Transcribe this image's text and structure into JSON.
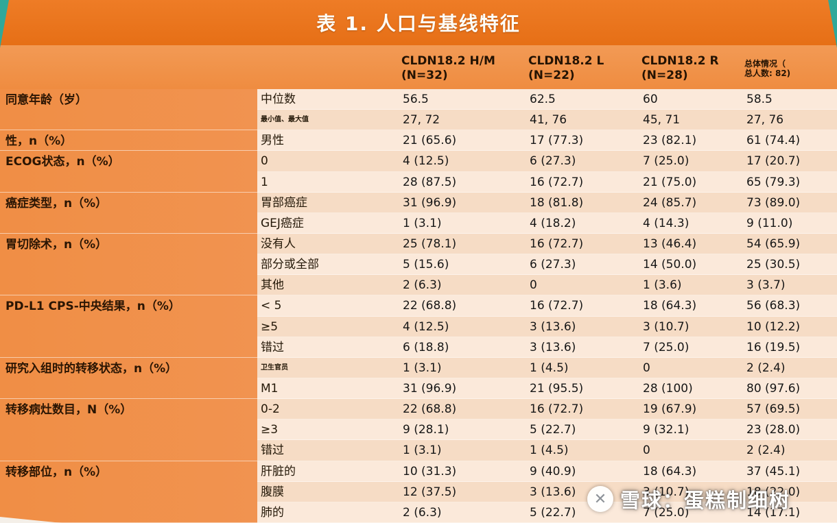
{
  "page": {
    "title": "表 1. 人口与基线特征",
    "watermark_text": "雪球：蛋糕制细树",
    "watermark_logo_glyph": "✕"
  },
  "colors": {
    "title_bar": "#e9741f",
    "header_band": "#f0924b",
    "left_column": "#f08e45",
    "row_light": "#fbe9da",
    "row_dark": "#f6dcc5",
    "page_background": "#2fa89a"
  },
  "table": {
    "header": {
      "cols": [
        {
          "line1": "CLDN18.2 H/M",
          "line2": "(N=32)"
        },
        {
          "line1": "CLDN18.2 L",
          "line2": "(N=22)"
        },
        {
          "line1": "CLDN18.2 R",
          "line2": "(N=28)"
        },
        {
          "line1": "总体情况（",
          "line2": "总人数: 82)"
        }
      ]
    },
    "groups": [
      {
        "label": "同意年龄（岁）",
        "rows": [
          {
            "sub": "中位数",
            "values": [
              "56.5",
              "62.5",
              "60",
              "58.5"
            ]
          },
          {
            "sub": "最小值、最大值",
            "small": true,
            "values": [
              "27, 72",
              "41, 76",
              "45, 71",
              "27, 76"
            ]
          }
        ]
      },
      {
        "label": "性，n（%）",
        "rows": [
          {
            "sub": "男性",
            "values": [
              "21 (65.6)",
              "17 (77.3)",
              "23 (82.1)",
              "61 (74.4)"
            ]
          }
        ]
      },
      {
        "label": "ECOG状态，n（%）",
        "rows": [
          {
            "sub": "0",
            "values": [
              "4 (12.5)",
              "6 (27.3)",
              "7 (25.0)",
              "17 (20.7)"
            ]
          },
          {
            "sub": "1",
            "values": [
              "28 (87.5)",
              "16 (72.7)",
              "21 (75.0)",
              "65 (79.3)"
            ]
          }
        ]
      },
      {
        "label": "癌症类型，n（%）",
        "rows": [
          {
            "sub": "胃部癌症",
            "values": [
              "31 (96.9)",
              "18 (81.8)",
              "24 (85.7)",
              "73 (89.0)"
            ]
          },
          {
            "sub": "GEJ癌症",
            "values": [
              "1 (3.1)",
              "4 (18.2)",
              "4 (14.3)",
              "9 (11.0)"
            ]
          }
        ]
      },
      {
        "label": "胃切除术，n（%）",
        "rows": [
          {
            "sub": "没有人",
            "values": [
              "25 (78.1)",
              "16 (72.7)",
              "13 (46.4)",
              "54 (65.9)"
            ]
          },
          {
            "sub": "部分或全部",
            "values": [
              "5 (15.6)",
              "6 (27.3)",
              "14 (50.0)",
              "25 (30.5)"
            ]
          },
          {
            "sub": "其他",
            "values": [
              "2 (6.3)",
              "0",
              "1 (3.6)",
              "3 (3.7)"
            ]
          }
        ]
      },
      {
        "label": "PD-L1 CPS-中央结果，n（%）",
        "rows": [
          {
            "sub": "< 5",
            "values": [
              "22 (68.8)",
              "16 (72.7)",
              "18 (64.3)",
              "56 (68.3)"
            ]
          },
          {
            "sub": "≥5",
            "values": [
              "4 (12.5)",
              "3 (13.6)",
              "3 (10.7)",
              "10 (12.2)"
            ]
          },
          {
            "sub": "错过",
            "values": [
              "6 (18.8)",
              "3 (13.6)",
              "7 (25.0)",
              "16 (19.5)"
            ]
          }
        ]
      },
      {
        "label": "研究入组时的转移状态，n（%）",
        "rows": [
          {
            "sub": "卫生官员",
            "small": true,
            "values": [
              "1 (3.1)",
              "1 (4.5)",
              "0",
              "2 (2.4)"
            ]
          },
          {
            "sub": "M1",
            "values": [
              "31 (96.9)",
              "21 (95.5)",
              "28 (100)",
              "80 (97.6)"
            ]
          }
        ]
      },
      {
        "label": "转移病灶数目，N（%）",
        "rows": [
          {
            "sub": "0-2",
            "values": [
              "22 (68.8)",
              "16 (72.7)",
              "19 (67.9)",
              "57 (69.5)"
            ]
          },
          {
            "sub": "≥3",
            "values": [
              "9 (28.1)",
              "5 (22.7)",
              "9 (32.1)",
              "23 (28.0)"
            ]
          },
          {
            "sub": "错过",
            "values": [
              "1 (3.1)",
              "1 (4.5)",
              "0",
              "2 (2.4)"
            ]
          }
        ]
      },
      {
        "label": "转移部位，n（%）",
        "rows": [
          {
            "sub": "肝脏的",
            "values": [
              "10 (31.3)",
              "9 (40.9)",
              "18 (64.3)",
              "37 (45.1)"
            ]
          },
          {
            "sub": "腹膜",
            "values": [
              "12 (37.5)",
              "3 (13.6)",
              "3 (10.7)",
              "18 (22.0)"
            ]
          },
          {
            "sub": "肺的",
            "values": [
              "2 (6.3)",
              "5 (22.7)",
              "7 (25.0)",
              "14 (17.1)"
            ]
          }
        ]
      }
    ]
  }
}
